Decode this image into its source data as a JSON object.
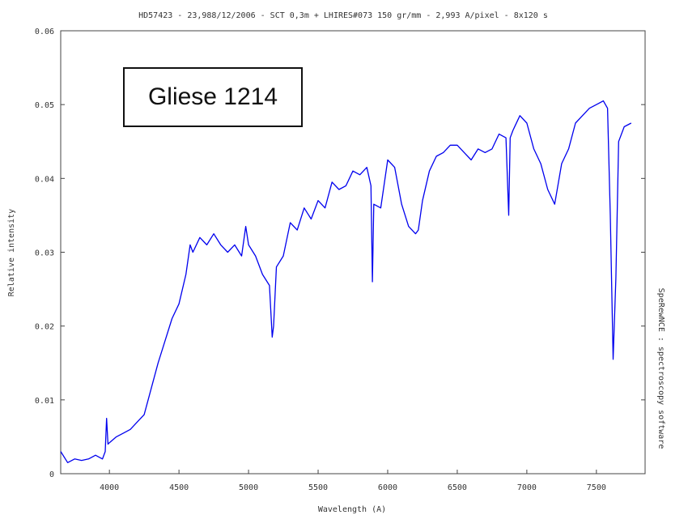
{
  "chart_data": {
    "type": "line",
    "title": "HD57423 - 23,988/12/2006 - SCT 0,3m + LHIRES#073 150 gr/mm - 2,993 A/pixel - 8x120 s",
    "xlabel": "Wavelength (A)",
    "ylabel": "Relative intensity",
    "side_label": "SpeRewNCE : spectroscopy software",
    "annotation": "Gliese 1214",
    "xlim": [
      3650,
      7850
    ],
    "ylim": [
      0,
      0.06
    ],
    "x_ticks": [
      4000,
      4500,
      5000,
      5500,
      6000,
      6500,
      7000,
      7500
    ],
    "y_ticks": [
      0,
      0.01,
      0.02,
      0.03,
      0.04,
      0.05,
      0.06
    ],
    "y_tick_labels": [
      "0",
      "0.01",
      "0.02",
      "0.03",
      "0.04",
      "0.05",
      "0.06"
    ],
    "line_color": "#0000ee",
    "series": [
      {
        "x": [
          3650,
          3700,
          3750,
          3800,
          3850,
          3900,
          3950,
          3970,
          3980,
          3990,
          4000,
          4050,
          4100,
          4150,
          4200,
          4250,
          4300,
          4350,
          4400,
          4450,
          4500,
          4550,
          4580,
          4600,
          4650,
          4700,
          4750,
          4800,
          4850,
          4900,
          4950,
          4980,
          5000,
          5050,
          5100,
          5150,
          5170,
          5180,
          5200,
          5250,
          5300,
          5350,
          5400,
          5450,
          5500,
          5550,
          5600,
          5650,
          5700,
          5750,
          5800,
          5850,
          5880,
          5890,
          5900,
          5950,
          6000,
          6050,
          6100,
          6150,
          6200,
          6220,
          6250,
          6300,
          6350,
          6400,
          6450,
          6500,
          6550,
          6600,
          6650,
          6700,
          6750,
          6800,
          6850,
          6870,
          6880,
          6900,
          6950,
          7000,
          7050,
          7100,
          7150,
          7200,
          7250,
          7300,
          7350,
          7400,
          7450,
          7500,
          7550,
          7580,
          7600,
          7620,
          7640,
          7660,
          7700,
          7750
        ],
        "y": [
          0.003,
          0.0015,
          0.002,
          0.0018,
          0.002,
          0.0025,
          0.002,
          0.003,
          0.0075,
          0.004,
          0.0042,
          0.005,
          0.0055,
          0.006,
          0.007,
          0.008,
          0.0115,
          0.015,
          0.018,
          0.021,
          0.023,
          0.027,
          0.031,
          0.03,
          0.032,
          0.031,
          0.0325,
          0.031,
          0.03,
          0.031,
          0.0295,
          0.0335,
          0.031,
          0.0295,
          0.027,
          0.0255,
          0.0185,
          0.02,
          0.028,
          0.0295,
          0.034,
          0.033,
          0.036,
          0.0345,
          0.037,
          0.036,
          0.0395,
          0.0385,
          0.039,
          0.041,
          0.0405,
          0.0415,
          0.039,
          0.026,
          0.0365,
          0.036,
          0.0425,
          0.0415,
          0.0365,
          0.0335,
          0.0325,
          0.033,
          0.037,
          0.041,
          0.043,
          0.0435,
          0.0445,
          0.0445,
          0.0435,
          0.0425,
          0.044,
          0.0435,
          0.044,
          0.046,
          0.0455,
          0.035,
          0.0455,
          0.0465,
          0.0485,
          0.0475,
          0.044,
          0.042,
          0.0385,
          0.0365,
          0.042,
          0.044,
          0.0475,
          0.0485,
          0.0495,
          0.05,
          0.0505,
          0.0495,
          0.035,
          0.0155,
          0.0265,
          0.045,
          0.047,
          0.0475
        ]
      }
    ]
  }
}
